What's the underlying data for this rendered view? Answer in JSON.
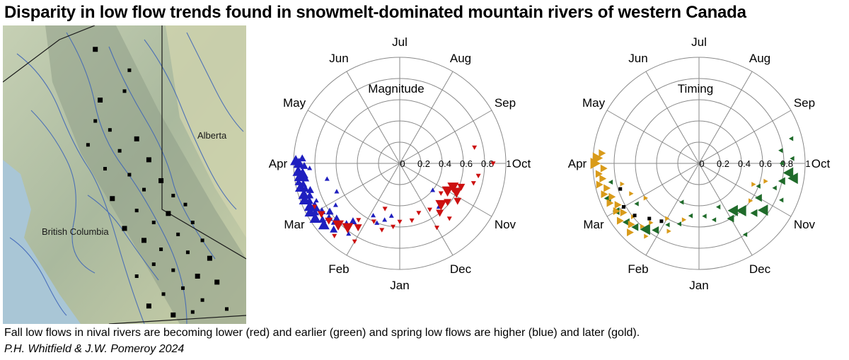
{
  "title": "Disparity in low flow trends found in snowmelt-dominated mountain rivers of western Canada",
  "caption": "Fall low flows in nival rivers are becoming lower (red) and earlier (green) and spring low flows are higher (blue) and later (gold).",
  "credit": "P.H. Whitfield & J.W. Pomeroy 2024",
  "map": {
    "labels": [
      "Alberta",
      "British Columbia"
    ],
    "colors": {
      "land": "#b9c6a8",
      "mountains": "#9aa993",
      "water": "#a9c6d6",
      "rivers": "#3b63b8",
      "border": "#1a1a1a",
      "stations": "#000000"
    },
    "stations": [
      [
        0.38,
        0.08
      ],
      [
        0.52,
        0.15
      ],
      [
        0.5,
        0.22
      ],
      [
        0.4,
        0.25
      ],
      [
        0.38,
        0.32
      ],
      [
        0.44,
        0.35
      ],
      [
        0.55,
        0.38
      ],
      [
        0.35,
        0.4
      ],
      [
        0.48,
        0.42
      ],
      [
        0.6,
        0.45
      ],
      [
        0.42,
        0.48
      ],
      [
        0.52,
        0.5
      ],
      [
        0.65,
        0.52
      ],
      [
        0.58,
        0.55
      ],
      [
        0.7,
        0.57
      ],
      [
        0.45,
        0.58
      ],
      [
        0.75,
        0.6
      ],
      [
        0.55,
        0.62
      ],
      [
        0.68,
        0.63
      ],
      [
        0.62,
        0.66
      ],
      [
        0.78,
        0.66
      ],
      [
        0.5,
        0.68
      ],
      [
        0.72,
        0.7
      ],
      [
        0.82,
        0.72
      ],
      [
        0.58,
        0.72
      ],
      [
        0.65,
        0.75
      ],
      [
        0.76,
        0.76
      ],
      [
        0.85,
        0.78
      ],
      [
        0.62,
        0.8
      ],
      [
        0.7,
        0.82
      ],
      [
        0.8,
        0.84
      ],
      [
        0.55,
        0.84
      ],
      [
        0.74,
        0.88
      ],
      [
        0.88,
        0.86
      ],
      [
        0.66,
        0.9
      ],
      [
        0.82,
        0.92
      ],
      [
        0.6,
        0.94
      ],
      [
        0.92,
        0.95
      ],
      [
        0.78,
        0.96
      ],
      [
        0.7,
        0.97
      ]
    ]
  },
  "chart_data": [
    {
      "type": "scatter",
      "coordinate_system": "polar",
      "label": "Magnitude",
      "angular_labels": [
        "Jan",
        "Feb",
        "Mar",
        "Apr",
        "May",
        "Jun",
        "Jul",
        "Aug",
        "Sep",
        "Oct",
        "Nov",
        "Dec"
      ],
      "radial_ticks": [
        "0",
        "0.2",
        "0.4",
        "0.6",
        "0.8",
        "1"
      ],
      "rlim": [
        0,
        1
      ],
      "grid": true,
      "series": [
        {
          "color": "#1f1fbf",
          "marker": "triangle-up",
          "points": [
            [
              3.0,
              0.95,
              3
            ],
            [
              3.05,
              0.98,
              3
            ],
            [
              2.95,
              0.9,
              2
            ],
            [
              3.1,
              0.92,
              2
            ],
            [
              2.9,
              0.85,
              1
            ],
            [
              2.85,
              0.96,
              3
            ],
            [
              2.8,
              0.92,
              3
            ],
            [
              2.75,
              0.95,
              3
            ],
            [
              2.7,
              0.9,
              2
            ],
            [
              2.65,
              0.97,
              2
            ],
            [
              2.6,
              0.93,
              2
            ],
            [
              2.55,
              0.96,
              3
            ],
            [
              2.5,
              0.92,
              2
            ],
            [
              2.45,
              0.88,
              2
            ],
            [
              2.4,
              0.95,
              3
            ],
            [
              2.35,
              0.9,
              2
            ],
            [
              2.3,
              0.96,
              3
            ],
            [
              2.25,
              0.92,
              2
            ],
            [
              2.2,
              0.86,
              1
            ],
            [
              2.15,
              0.94,
              3
            ],
            [
              2.1,
              0.9,
              3
            ],
            [
              2.05,
              0.96,
              3
            ],
            [
              2.0,
              0.92,
              2
            ],
            [
              1.95,
              0.86,
              2
            ],
            [
              1.9,
              0.95,
              3
            ],
            [
              1.85,
              0.8,
              2
            ],
            [
              1.8,
              0.9,
              2
            ],
            [
              1.75,
              0.84,
              2
            ],
            [
              1.7,
              0.92,
              3
            ],
            [
              1.6,
              0.8,
              3
            ],
            [
              1.5,
              0.88,
              2
            ],
            [
              1.4,
              0.75,
              1
            ],
            [
              1.3,
              0.7,
              2
            ],
            [
              1.2,
              0.82,
              1
            ],
            [
              0.9,
              0.55,
              1
            ],
            [
              0.7,
              0.6,
              1
            ],
            [
              0.5,
              0.55,
              1
            ],
            [
              0.3,
              0.5,
              1
            ],
            [
              10.6,
              0.55,
              1
            ],
            [
              10.3,
              0.4,
              1
            ],
            [
              2.6,
              0.7,
              1
            ],
            [
              2.2,
              0.65,
              1
            ],
            [
              1.9,
              0.72,
              1
            ]
          ]
        },
        {
          "color": "#cc1010",
          "marker": "triangle-down",
          "points": [
            [
              9.8,
              0.55,
              3
            ],
            [
              9.9,
              0.6,
              3
            ],
            [
              10.0,
              0.52,
              3
            ],
            [
              10.1,
              0.65,
              2
            ],
            [
              9.7,
              0.62,
              2
            ],
            [
              10.3,
              0.58,
              2
            ],
            [
              10.5,
              0.55,
              3
            ],
            [
              10.7,
              0.6,
              2
            ],
            [
              9.5,
              0.72,
              1
            ],
            [
              9.3,
              0.75,
              1
            ],
            [
              8.6,
              0.72,
              1
            ],
            [
              9.0,
              0.88,
              1
            ],
            [
              10.2,
              0.48,
              1
            ],
            [
              10.9,
              0.52,
              1
            ],
            [
              11.3,
              0.5,
              1
            ],
            [
              11.6,
              0.55,
              1
            ],
            [
              0.2,
              0.6,
              1
            ],
            [
              0.5,
              0.65,
              1
            ],
            [
              0.8,
              0.6,
              1
            ],
            [
              1.1,
              0.72,
              2
            ],
            [
              1.3,
              0.78,
              3
            ],
            [
              1.5,
              0.82,
              3
            ],
            [
              1.7,
              0.86,
              2
            ],
            [
              1.9,
              0.88,
              2
            ],
            [
              2.1,
              0.9,
              1
            ],
            [
              1.2,
              0.66,
              1
            ],
            [
              0.6,
              0.45,
              1
            ],
            [
              11.0,
              0.7,
              1
            ],
            [
              10.6,
              0.7,
              1
            ],
            [
              0.0,
              0.55,
              1
            ],
            [
              1.0,
              0.85,
              1
            ],
            [
              1.4,
              0.92,
              1
            ]
          ]
        }
      ]
    },
    {
      "type": "scatter",
      "coordinate_system": "polar",
      "label": "Timing",
      "angular_labels": [
        "Jan",
        "Feb",
        "Mar",
        "Apr",
        "May",
        "Jun",
        "Jul",
        "Aug",
        "Sep",
        "Oct",
        "Nov",
        "Dec"
      ],
      "radial_ticks": [
        "0",
        "0.2",
        "0.4",
        "0.6",
        "0.8",
        "1"
      ],
      "rlim": [
        0,
        1
      ],
      "grid": true,
      "series": [
        {
          "color": "#1f6b2a",
          "marker": "triangle-left",
          "points": [
            [
              9.2,
              0.85,
              3
            ],
            [
              9.3,
              0.9,
              3
            ],
            [
              9.4,
              0.8,
              2
            ],
            [
              9.0,
              0.78,
              1
            ],
            [
              8.7,
              0.78,
              1
            ],
            [
              8.5,
              0.9,
              1
            ],
            [
              8.9,
              0.88,
              1
            ],
            [
              9.6,
              0.75,
              1
            ],
            [
              9.8,
              0.85,
              1
            ],
            [
              10.0,
              0.65,
              2
            ],
            [
              10.2,
              0.75,
              3
            ],
            [
              10.4,
              0.7,
              2
            ],
            [
              10.6,
              0.6,
              3
            ],
            [
              10.8,
              0.55,
              3
            ],
            [
              11.0,
              0.6,
              2
            ],
            [
              11.2,
              0.45,
              1
            ],
            [
              11.5,
              0.55,
              1
            ],
            [
              11.8,
              0.5,
              1
            ],
            [
              0.3,
              0.5,
              1
            ],
            [
              0.6,
              0.6,
              1
            ],
            [
              0.9,
              0.65,
              1
            ],
            [
              1.1,
              0.75,
              2
            ],
            [
              1.3,
              0.8,
              3
            ],
            [
              1.5,
              0.85,
              2
            ],
            [
              1.7,
              0.88,
              2
            ],
            [
              2.0,
              0.9,
              2
            ],
            [
              2.3,
              0.92,
              2
            ],
            [
              2.6,
              0.85,
              1
            ],
            [
              1.9,
              0.7,
              1
            ],
            [
              10.9,
              0.8,
              1
            ],
            [
              9.7,
              0.6,
              1
            ],
            [
              0.8,
              0.4,
              1
            ]
          ]
        },
        {
          "color": "#d99b1a",
          "marker": "triangle-right",
          "points": [
            [
              3.1,
              0.96,
              3
            ],
            [
              3.2,
              0.92,
              2
            ],
            [
              3.0,
              0.98,
              3
            ],
            [
              2.9,
              0.9,
              2
            ],
            [
              2.8,
              0.95,
              2
            ],
            [
              2.7,
              0.92,
              2
            ],
            [
              2.6,
              0.96,
              2
            ],
            [
              2.5,
              0.9,
              2
            ],
            [
              2.4,
              0.94,
              2
            ],
            [
              2.3,
              0.88,
              2
            ],
            [
              2.2,
              0.92,
              2
            ],
            [
              2.1,
              0.86,
              2
            ],
            [
              2.0,
              0.9,
              2
            ],
            [
              1.9,
              0.85,
              2
            ],
            [
              1.8,
              0.92,
              2
            ],
            [
              1.7,
              0.8,
              1
            ],
            [
              1.6,
              0.86,
              2
            ],
            [
              1.5,
              0.92,
              2
            ],
            [
              1.4,
              0.8,
              1
            ],
            [
              1.3,
              0.72,
              1
            ],
            [
              1.2,
              0.85,
              1
            ],
            [
              1.0,
              0.6,
              1
            ],
            [
              0.8,
              0.7,
              1
            ],
            [
              0.5,
              0.55,
              1
            ],
            [
              9.5,
              0.65,
              1
            ],
            [
              9.7,
              0.55,
              1
            ],
            [
              10.2,
              0.6,
              1
            ],
            [
              2.5,
              0.75,
              1
            ],
            [
              2.2,
              0.7,
              1
            ],
            [
              1.9,
              0.6,
              1
            ]
          ]
        },
        {
          "color": "#000000",
          "marker": "square",
          "points": [
            [
              2.0,
              0.82,
              1
            ],
            [
              1.7,
              0.78,
              1
            ],
            [
              1.4,
              0.7,
              1
            ],
            [
              2.4,
              0.78,
              1
            ],
            [
              1.1,
              0.65,
              1
            ]
          ]
        }
      ]
    }
  ]
}
